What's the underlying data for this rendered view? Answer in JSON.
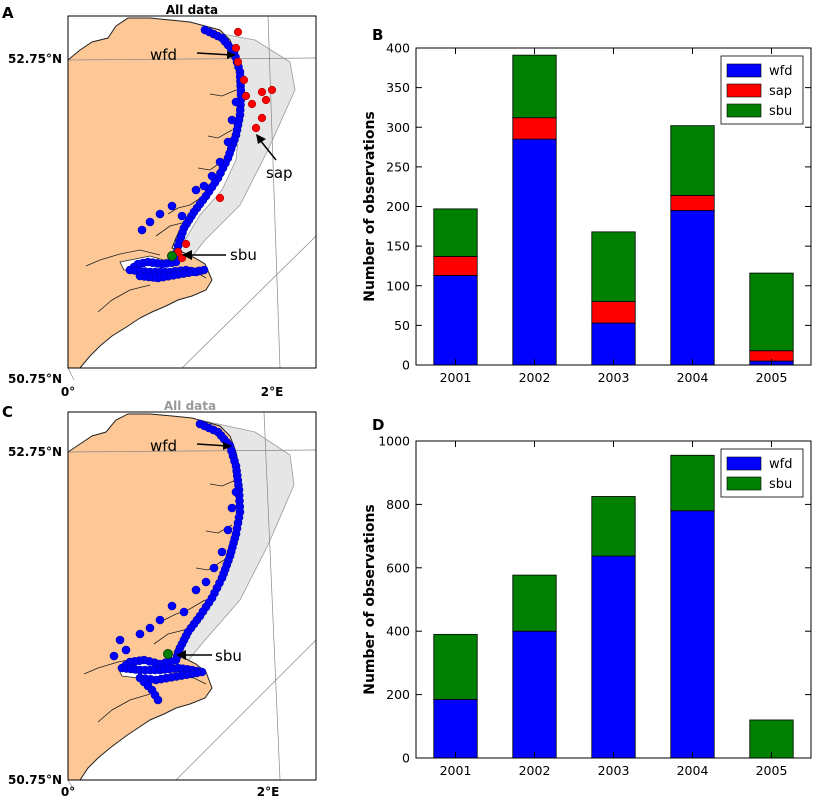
{
  "panels": {
    "a": {
      "letter": "A",
      "title": "All data",
      "lat_top": "52.75°N",
      "lat_bottom": "50.75°N",
      "lon_left": "0°",
      "lon_right": "2°E",
      "labels": {
        "wfd": "wfd",
        "sap": "sap",
        "sbu": "sbu"
      }
    },
    "b": {
      "letter": "B"
    },
    "c": {
      "letter": "C",
      "title": "All data",
      "lat_top": "52.75°N",
      "lat_bottom": "50.75°N",
      "lon_left": "0°",
      "lon_right": "2°E",
      "labels": {
        "wfd": "wfd",
        "sbu": "sbu"
      }
    },
    "d": {
      "letter": "D"
    }
  },
  "colors": {
    "wfd": "#0000ff",
    "sap": "#ff0000",
    "sbu": "#008000",
    "land": "#fdc896",
    "sea_shade": "#e6e6e6",
    "coast": "#333333"
  },
  "chart_data": [
    {
      "type": "bar",
      "stacked": true,
      "categories": [
        "2001",
        "2002",
        "2003",
        "2004",
        "2005"
      ],
      "series": [
        {
          "name": "wfd",
          "values": [
            113,
            285,
            53,
            195,
            5
          ]
        },
        {
          "name": "sap",
          "values": [
            24,
            27,
            27,
            19,
            13
          ]
        },
        {
          "name": "sbu",
          "values": [
            60,
            79,
            88,
            88,
            98
          ]
        }
      ],
      "ylabel": "Number of observations",
      "ylim": [
        0,
        400
      ],
      "yticks": [
        0,
        50,
        100,
        150,
        200,
        250,
        300,
        350,
        400
      ],
      "legend": "top-right"
    },
    {
      "type": "bar",
      "stacked": true,
      "categories": [
        "2001",
        "2002",
        "2003",
        "2004",
        "2005"
      ],
      "series": [
        {
          "name": "wfd",
          "values": [
            185,
            400,
            637,
            780,
            0
          ]
        },
        {
          "name": "sbu",
          "values": [
            205,
            177,
            188,
            175,
            120
          ]
        }
      ],
      "ylabel": "Number of observations",
      "ylim": [
        0,
        1000
      ],
      "yticks": [
        0,
        200,
        400,
        600,
        800,
        1000
      ],
      "legend": "top-right"
    }
  ]
}
